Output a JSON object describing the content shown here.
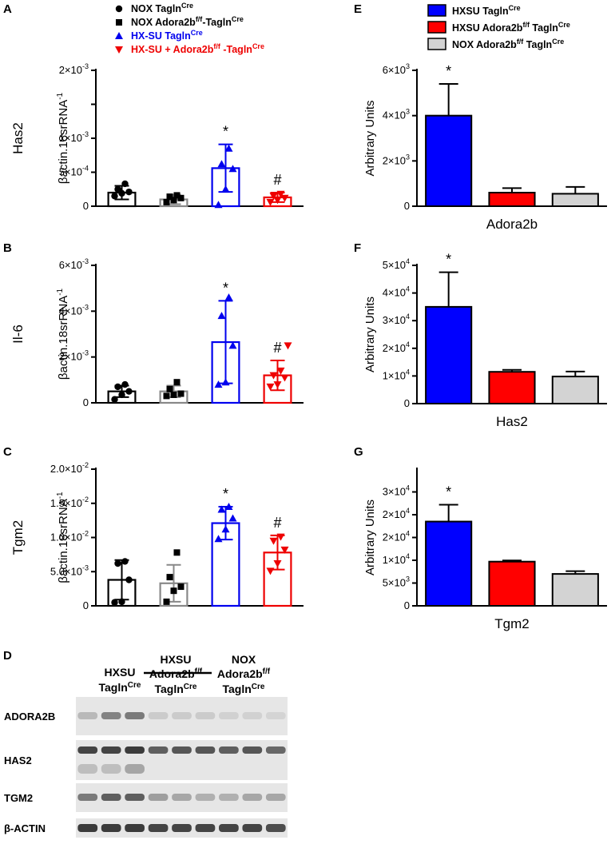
{
  "panels": {
    "A": "A",
    "B": "B",
    "C": "C",
    "D": "D",
    "E": "E",
    "F": "F",
    "G": "G"
  },
  "left_legend": [
    {
      "base": "NOX Tagln",
      "sup": "Cre",
      "rest": "",
      "color": "#000000",
      "marker": "circle"
    },
    {
      "base": "NOX Adora2b",
      "sup": "f/f",
      "rest": "-Tagln",
      "sup2": "Cre",
      "color": "#000000",
      "marker": "square"
    },
    {
      "base": "HX-SU Tagln",
      "sup": "Cre",
      "rest": "",
      "color": "#0000ee",
      "marker": "triangle"
    },
    {
      "base": "HX-SU + Adora2b",
      "sup": "f/f",
      "rest": " -Tagln",
      "sup2": "Cre",
      "color": "#ee0000",
      "marker": "triangle-down"
    }
  ],
  "right_legend": [
    {
      "base": "HXSU Tagln",
      "sup": "Cre",
      "color": "#0000ff"
    },
    {
      "base": "HXSU Adora2b",
      "sup": "f/f",
      "base2": " Tagln",
      "sup2": "Cre",
      "color": "#ff0000"
    },
    {
      "base": "NOX Adora2b",
      "sup": "f/f",
      "base2": " Tagln",
      "sup2": "Cre",
      "color": "#d3d3d3"
    }
  ],
  "chart_data": [
    {
      "id": "A",
      "type": "bar",
      "gene": "Has2",
      "ylabel": "βactin.18srRNA-1",
      "ylim": [
        0,
        0.002
      ],
      "yticks": [
        {
          "v": 0,
          "t": "0"
        },
        {
          "v": 0.0005,
          "t": "5×10",
          "e": "-4"
        },
        {
          "v": 0.001,
          "t": "1×10",
          "e": "-3"
        },
        {
          "v": 0.0015,
          "t": "",
          "e": ""
        },
        {
          "v": 0.002,
          "t": "2×10",
          "e": "-3"
        }
      ],
      "series": [
        {
          "name": "NOX TaglnCre",
          "mean": 0.0002,
          "sd": 0.0001,
          "color": "#000000",
          "marker": "circle",
          "points": [
            0.00015,
            0.00019,
            0.00021,
            0.00025,
            0.00033
          ],
          "annot": ""
        },
        {
          "name": "NOX Adora2bf/f-TaglnCre",
          "mean": 0.0001,
          "sd": 7e-05,
          "color": "#888888",
          "marker": "square",
          "points": [
            6e-05,
            9e-05,
            0.00012,
            0.00014,
            0.00016
          ],
          "annot": ""
        },
        {
          "name": "HX-SU TaglnCre",
          "mean": 0.00056,
          "sd": 0.00035,
          "color": "#0000ee",
          "marker": "triangle",
          "points": [
            2e-05,
            0.00025,
            0.00055,
            0.00062,
            0.00085
          ],
          "annot": "*"
        },
        {
          "name": "HX-SU + Adora2bf/f-TaglnCre",
          "mean": 0.00013,
          "sd": 7e-05,
          "color": "#ee0000",
          "marker": "triangle-down",
          "points": [
            6e-05,
            9e-05,
            0.00012,
            0.00015,
            0.00018
          ],
          "annot": "#"
        }
      ]
    },
    {
      "id": "B",
      "type": "bar",
      "gene": "Il-6",
      "ylabel": "βactin.18srRNA-1",
      "ylim": [
        0,
        0.006
      ],
      "yticks": [
        {
          "v": 0,
          "t": "0"
        },
        {
          "v": 0.002,
          "t": "2×10",
          "e": "-3"
        },
        {
          "v": 0.004,
          "t": "4×10",
          "e": "-3"
        },
        {
          "v": 0.006,
          "t": "6×10",
          "e": "-3"
        }
      ],
      "series": [
        {
          "name": "NOX TaglnCre",
          "mean": 0.0005,
          "sd": 0.00025,
          "color": "#000000",
          "marker": "circle",
          "points": [
            0.00015,
            0.00035,
            0.0005,
            0.0007,
            0.0008
          ],
          "annot": ""
        },
        {
          "name": "NOX Adora2bf/f-TaglnCre",
          "mean": 0.0005,
          "sd": 0.00025,
          "color": "#888888",
          "marker": "square",
          "points": [
            0.0003,
            0.00035,
            0.0004,
            0.0006,
            0.0009
          ],
          "annot": ""
        },
        {
          "name": "HX-SU TaglnCre",
          "mean": 0.00265,
          "sd": 0.0018,
          "color": "#0000ee",
          "marker": "triangle",
          "points": [
            0.0008,
            0.0009,
            0.0025,
            0.0038,
            0.0046
          ],
          "annot": "*"
        },
        {
          "name": "HX-SU + Adora2bf/f-TaglnCre",
          "mean": 0.0012,
          "sd": 0.00065,
          "color": "#ee0000",
          "marker": "triangle-down",
          "points": [
            0.0007,
            0.0008,
            0.0011,
            0.0012,
            0.0014,
            0.0025
          ],
          "annot": "#"
        }
      ]
    },
    {
      "id": "C",
      "type": "bar",
      "gene": "Tgm2",
      "ylabel": "βactin.18srRNA-1",
      "ylim": [
        0,
        0.02
      ],
      "yticks": [
        {
          "v": 0,
          "t": "0"
        },
        {
          "v": 0.005,
          "t": "5.0×10",
          "e": "-3"
        },
        {
          "v": 0.01,
          "t": "1.0×10",
          "e": "-2"
        },
        {
          "v": 0.015,
          "t": "1.5×10",
          "e": "-2"
        },
        {
          "v": 0.02,
          "t": "2.0×10",
          "e": "-2"
        }
      ],
      "series": [
        {
          "name": "NOX TaglnCre",
          "mean": 0.0038,
          "sd": 0.0029,
          "color": "#000000",
          "marker": "circle",
          "points": [
            0.0005,
            0.0006,
            0.0038,
            0.0062,
            0.0065
          ],
          "annot": ""
        },
        {
          "name": "NOX Adora2bf/f-TaglnCre",
          "mean": 0.0033,
          "sd": 0.0027,
          "color": "#888888",
          "marker": "square",
          "points": [
            0.0006,
            0.0022,
            0.0028,
            0.0042,
            0.0078
          ],
          "annot": ""
        },
        {
          "name": "HX-SU TaglnCre",
          "mean": 0.0121,
          "sd": 0.0024,
          "color": "#0000ee",
          "marker": "triangle",
          "points": [
            0.0098,
            0.0112,
            0.0128,
            0.0141,
            0.0145
          ],
          "annot": "*"
        },
        {
          "name": "HX-SU + Adora2bf/f-TaglnCre",
          "mean": 0.0078,
          "sd": 0.0025,
          "color": "#ee0000",
          "marker": "triangle-down",
          "points": [
            0.0051,
            0.0062,
            0.0082,
            0.0095,
            0.0101
          ],
          "annot": "#"
        }
      ]
    },
    {
      "id": "E",
      "type": "bar",
      "gene": "Adora2b",
      "ylabel": "Arbitrary Units",
      "ylim": [
        0,
        6000
      ],
      "yticks": [
        {
          "v": 0,
          "t": "0"
        },
        {
          "v": 2000,
          "t": "2×10",
          "e": "3"
        },
        {
          "v": 4000,
          "t": "4×10",
          "e": "3"
        },
        {
          "v": 6000,
          "t": "6×10",
          "e": "3"
        }
      ],
      "categories": [
        "HXSU TaglnCre",
        "HXSU Adora2bf/f TaglnCre",
        "NOX Adora2bf/f TaglnCre"
      ],
      "values": [
        4000,
        600,
        550
      ],
      "errors": [
        1400,
        200,
        300
      ],
      "colors": [
        "#0000ff",
        "#ff0000",
        "#d3d3d3"
      ],
      "annots": [
        "*",
        "",
        ""
      ]
    },
    {
      "id": "F",
      "type": "bar",
      "gene": "Has2",
      "ylabel": "Arbitrary Units",
      "ylim": [
        0,
        50000
      ],
      "yticks": [
        {
          "v": 0,
          "t": "0"
        },
        {
          "v": 10000,
          "t": "1×10",
          "e": "4"
        },
        {
          "v": 20000,
          "t": "2×10",
          "e": "4"
        },
        {
          "v": 30000,
          "t": "3×10",
          "e": "4"
        },
        {
          "v": 40000,
          "t": "4×10",
          "e": "4"
        },
        {
          "v": 50000,
          "t": "5×10",
          "e": "4"
        }
      ],
      "categories": [
        "HXSU TaglnCre",
        "HXSU Adora2bf/f TaglnCre",
        "NOX Adora2bf/f TaglnCre"
      ],
      "values": [
        35000,
        11500,
        9800
      ],
      "errors": [
        12500,
        700,
        1800
      ],
      "colors": [
        "#0000ff",
        "#ff0000",
        "#d3d3d3"
      ],
      "annots": [
        "*",
        "",
        ""
      ]
    },
    {
      "id": "G",
      "type": "bar",
      "gene": "Tgm2",
      "ylabel": "Arbitrary Units",
      "ylim": [
        0,
        30000
      ],
      "yticks": [
        {
          "v": 0,
          "t": "0"
        },
        {
          "v": 5000,
          "t": "5×10",
          "e": "3"
        },
        {
          "v": 10000,
          "t": "1×10",
          "e": "4"
        },
        {
          "v": 15000,
          "t": "2×10",
          "e": "4"
        },
        {
          "v": 20000,
          "t": "2×10",
          "e": "4"
        },
        {
          "v": 25000,
          "t": "3×10",
          "e": "4"
        }
      ],
      "categories": [
        "HXSU TaglnCre",
        "HXSU Adora2bf/f TaglnCre",
        "NOX Adora2bf/f TaglnCre"
      ],
      "values": [
        18500,
        9700,
        7000
      ],
      "errors": [
        3700,
        250,
        600
      ],
      "colors": [
        "#0000ff",
        "#ff0000",
        "#d3d3d3"
      ],
      "annots": [
        "*",
        "",
        ""
      ]
    }
  ],
  "western": {
    "groups": [
      {
        "l1": "HXSU",
        "l2": "Tagln",
        "s2": "Cre"
      },
      {
        "l0": "HXSU",
        "l1": "Adora2b",
        "s1": "f/f",
        "l2": "Tagln",
        "s2": "Cre"
      },
      {
        "l0": "NOX",
        "l1": "Adora2b",
        "s1": "f/f",
        "l2": "Tagln",
        "s2": "Cre"
      }
    ],
    "rows": [
      {
        "label": "ADORA2B",
        "intensities": [
          0.25,
          0.55,
          0.6,
          0.15,
          0.15,
          0.15,
          0.12,
          0.12,
          0.1
        ]
      },
      {
        "label": "HAS2",
        "intensities": [
          0.9,
          0.9,
          0.95,
          0.75,
          0.8,
          0.8,
          0.75,
          0.8,
          0.7
        ]
      },
      {
        "label": "TGM2",
        "intensities": [
          0.6,
          0.75,
          0.75,
          0.4,
          0.35,
          0.3,
          0.3,
          0.35,
          0.35
        ]
      },
      {
        "label": "β-ACTIN",
        "intensities": [
          0.95,
          0.95,
          0.95,
          0.9,
          0.9,
          0.9,
          0.9,
          0.9,
          0.85
        ]
      }
    ]
  }
}
